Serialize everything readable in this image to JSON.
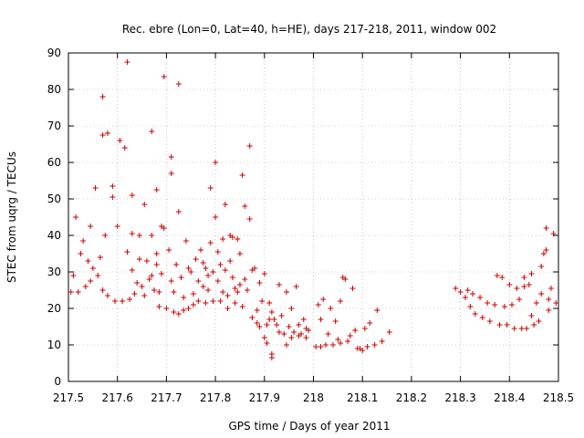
{
  "chart_data": {
    "type": "scatter",
    "title": "Rec. ebre (Lon=0, Lat=40, h=HE), days 217-218, 2011, window 002",
    "xlabel": "GPS time / Days of year 2011",
    "ylabel": "STEC from uqrg / TECUs",
    "xlim": [
      217.5,
      218.5
    ],
    "ylim": [
      0,
      90
    ],
    "grid": true,
    "marker": "+",
    "marker_color": "#cc0000",
    "xticks": [
      217.5,
      217.6,
      217.7,
      217.8,
      217.9,
      218.0,
      218.1,
      218.2,
      218.3,
      218.4,
      218.5
    ],
    "xtick_labels": [
      "217.5",
      "217.6",
      "217.7",
      "217.8",
      "217.9",
      "218",
      "218.1",
      "218.2",
      "218.3",
      "218.4",
      "218.5"
    ],
    "yticks": [
      0,
      10,
      20,
      30,
      40,
      50,
      60,
      70,
      80,
      90
    ],
    "ytick_labels": [
      "0",
      "10",
      "20",
      "30",
      "40",
      "50",
      "60",
      "70",
      "80",
      "90"
    ],
    "series": [
      {
        "name": "STEC",
        "points": [
          [
            217.505,
            24.5
          ],
          [
            217.51,
            29.0
          ],
          [
            217.515,
            45.0
          ],
          [
            217.52,
            24.5
          ],
          [
            217.525,
            35.0
          ],
          [
            217.53,
            38.5
          ],
          [
            217.535,
            26.0
          ],
          [
            217.54,
            33.0
          ],
          [
            217.545,
            42.5
          ],
          [
            217.545,
            27.5
          ],
          [
            217.55,
            31.0
          ],
          [
            217.555,
            53.0
          ],
          [
            217.56,
            29.0
          ],
          [
            217.565,
            34.0
          ],
          [
            217.57,
            78.0
          ],
          [
            217.57,
            67.5
          ],
          [
            217.57,
            25.0
          ],
          [
            217.575,
            40.0
          ],
          [
            217.58,
            68.0
          ],
          [
            217.58,
            23.5
          ],
          [
            217.59,
            53.5
          ],
          [
            217.59,
            50.5
          ],
          [
            217.595,
            22.0
          ],
          [
            217.6,
            42.5
          ],
          [
            217.605,
            66.0
          ],
          [
            217.61,
            22.0
          ],
          [
            217.615,
            64.0
          ],
          [
            217.62,
            87.5
          ],
          [
            217.62,
            35.5
          ],
          [
            217.625,
            22.5
          ],
          [
            217.63,
            51.0
          ],
          [
            217.63,
            40.5
          ],
          [
            217.63,
            30.5
          ],
          [
            217.635,
            24.0
          ],
          [
            217.64,
            27.0
          ],
          [
            217.645,
            40.0
          ],
          [
            217.645,
            33.5
          ],
          [
            217.65,
            26.0
          ],
          [
            217.655,
            48.5
          ],
          [
            217.655,
            23.5
          ],
          [
            217.66,
            33.0
          ],
          [
            217.665,
            28.0
          ],
          [
            217.67,
            68.5
          ],
          [
            217.67,
            40.0
          ],
          [
            217.67,
            29.0
          ],
          [
            217.675,
            25.0
          ],
          [
            217.68,
            52.5
          ],
          [
            217.68,
            35.0
          ],
          [
            217.68,
            32.0
          ],
          [
            217.685,
            24.5
          ],
          [
            217.685,
            20.5
          ],
          [
            217.69,
            42.5
          ],
          [
            217.69,
            29.5
          ],
          [
            217.695,
            83.5
          ],
          [
            217.695,
            42.0
          ],
          [
            217.7,
            20.0
          ],
          [
            217.705,
            36.0
          ],
          [
            217.71,
            61.5
          ],
          [
            217.71,
            57.0
          ],
          [
            217.71,
            27.5
          ],
          [
            217.715,
            24.5
          ],
          [
            217.715,
            19.0
          ],
          [
            217.72,
            32.0
          ],
          [
            217.725,
            81.5
          ],
          [
            217.725,
            46.5
          ],
          [
            217.725,
            18.5
          ],
          [
            217.73,
            28.5
          ],
          [
            217.735,
            23.0
          ],
          [
            217.735,
            19.5
          ],
          [
            217.74,
            38.5
          ],
          [
            217.745,
            31.0
          ],
          [
            217.745,
            20.0
          ],
          [
            217.75,
            30.0
          ],
          [
            217.755,
            24.0
          ],
          [
            217.755,
            21.0
          ],
          [
            217.76,
            33.5
          ],
          [
            217.765,
            27.5
          ],
          [
            217.765,
            22.0
          ],
          [
            217.77,
            36.0
          ],
          [
            217.775,
            32.5
          ],
          [
            217.775,
            26.0
          ],
          [
            217.78,
            31.0
          ],
          [
            217.78,
            21.5
          ],
          [
            217.785,
            29.0
          ],
          [
            217.785,
            25.0
          ],
          [
            217.79,
            53.0
          ],
          [
            217.79,
            38.0
          ],
          [
            217.795,
            30.0
          ],
          [
            217.795,
            22.0
          ],
          [
            217.8,
            60.0
          ],
          [
            217.8,
            45.0
          ],
          [
            217.805,
            35.5
          ],
          [
            217.805,
            27.5
          ],
          [
            217.81,
            32.0
          ],
          [
            217.81,
            22.0
          ],
          [
            217.815,
            39.0
          ],
          [
            217.815,
            24.5
          ],
          [
            217.82,
            48.5
          ],
          [
            217.82,
            30.5
          ],
          [
            217.825,
            23.5
          ],
          [
            217.825,
            20.0
          ],
          [
            217.83,
            40.0
          ],
          [
            217.83,
            33.0
          ],
          [
            217.835,
            39.5
          ],
          [
            217.835,
            28.5
          ],
          [
            217.84,
            25.5
          ],
          [
            217.84,
            21.5
          ],
          [
            217.845,
            39.0
          ],
          [
            217.845,
            24.5
          ],
          [
            217.85,
            35.0
          ],
          [
            217.85,
            26.5
          ],
          [
            217.855,
            56.5
          ],
          [
            217.855,
            20.5
          ],
          [
            217.86,
            48.0
          ],
          [
            217.86,
            28.0
          ],
          [
            217.865,
            25.0
          ],
          [
            217.87,
            64.5
          ],
          [
            217.87,
            44.5
          ],
          [
            217.875,
            30.5
          ],
          [
            217.875,
            17.5
          ],
          [
            217.88,
            31.0
          ],
          [
            217.885,
            19.5
          ],
          [
            217.885,
            16.0
          ],
          [
            217.89,
            27.0
          ],
          [
            217.89,
            15.0
          ],
          [
            217.895,
            22.0
          ],
          [
            217.9,
            29.5
          ],
          [
            217.9,
            12.0
          ],
          [
            217.905,
            15.5
          ],
          [
            217.905,
            10.5
          ],
          [
            217.91,
            21.5
          ],
          [
            217.91,
            17.0
          ],
          [
            217.915,
            19.0
          ],
          [
            217.915,
            7.5
          ],
          [
            217.915,
            6.5
          ],
          [
            217.92,
            17.0
          ],
          [
            217.925,
            15.5
          ],
          [
            217.93,
            26.5
          ],
          [
            217.93,
            13.5
          ],
          [
            217.935,
            18.0
          ],
          [
            217.94,
            13.0
          ],
          [
            217.945,
            24.5
          ],
          [
            217.945,
            10.0
          ],
          [
            217.95,
            15.0
          ],
          [
            217.955,
            20.0
          ],
          [
            217.955,
            12.0
          ],
          [
            217.96,
            13.5
          ],
          [
            217.965,
            26.0
          ],
          [
            217.97,
            15.5
          ],
          [
            217.97,
            12.5
          ],
          [
            217.975,
            13.0
          ],
          [
            217.98,
            17.0
          ],
          [
            217.985,
            14.5
          ],
          [
            217.985,
            12.0
          ],
          [
            217.99,
            14.0
          ],
          [
            218.005,
            9.5
          ],
          [
            218.01,
            21.0
          ],
          [
            218.015,
            17.0
          ],
          [
            218.015,
            9.5
          ],
          [
            218.02,
            22.5
          ],
          [
            218.025,
            10.0
          ],
          [
            218.03,
            13.0
          ],
          [
            218.035,
            20.0
          ],
          [
            218.04,
            10.0
          ],
          [
            218.045,
            16.5
          ],
          [
            218.05,
            11.5
          ],
          [
            218.055,
            22.0
          ],
          [
            218.055,
            10.5
          ],
          [
            218.06,
            28.5
          ],
          [
            218.065,
            28.0
          ],
          [
            218.07,
            11.0
          ],
          [
            218.075,
            12.5
          ],
          [
            218.08,
            25.5
          ],
          [
            218.085,
            14.0
          ],
          [
            218.09,
            9.0
          ],
          [
            218.095,
            9.0
          ],
          [
            218.1,
            8.5
          ],
          [
            218.105,
            14.5
          ],
          [
            218.11,
            9.5
          ],
          [
            218.115,
            16.0
          ],
          [
            218.125,
            10.0
          ],
          [
            218.13,
            19.5
          ],
          [
            218.14,
            11.0
          ],
          [
            218.155,
            13.5
          ],
          [
            218.29,
            25.5
          ],
          [
            218.3,
            24.5
          ],
          [
            218.31,
            23.0
          ],
          [
            218.315,
            25.0
          ],
          [
            218.32,
            20.5
          ],
          [
            218.325,
            24.0
          ],
          [
            218.33,
            18.5
          ],
          [
            218.34,
            23.0
          ],
          [
            218.345,
            17.5
          ],
          [
            218.355,
            21.5
          ],
          [
            218.36,
            16.5
          ],
          [
            218.37,
            21.0
          ],
          [
            218.375,
            29.0
          ],
          [
            218.38,
            15.5
          ],
          [
            218.385,
            28.5
          ],
          [
            218.39,
            20.5
          ],
          [
            218.395,
            15.5
          ],
          [
            218.4,
            26.5
          ],
          [
            218.405,
            21.0
          ],
          [
            218.41,
            14.5
          ],
          [
            218.415,
            25.5
          ],
          [
            218.42,
            22.5
          ],
          [
            218.425,
            14.5
          ],
          [
            218.43,
            28.5
          ],
          [
            218.43,
            26.0
          ],
          [
            218.435,
            14.5
          ],
          [
            218.44,
            26.5
          ],
          [
            218.445,
            29.5
          ],
          [
            218.445,
            18.0
          ],
          [
            218.45,
            15.5
          ],
          [
            218.455,
            21.5
          ],
          [
            218.46,
            16.5
          ],
          [
            218.465,
            31.5
          ],
          [
            218.465,
            24.0
          ],
          [
            218.47,
            35.0
          ],
          [
            218.475,
            42.0
          ],
          [
            218.475,
            36.0
          ],
          [
            218.48,
            19.5
          ],
          [
            218.48,
            22.5
          ],
          [
            218.485,
            25.5
          ],
          [
            218.49,
            40.5
          ],
          [
            218.495,
            21.5
          ]
        ]
      }
    ]
  }
}
